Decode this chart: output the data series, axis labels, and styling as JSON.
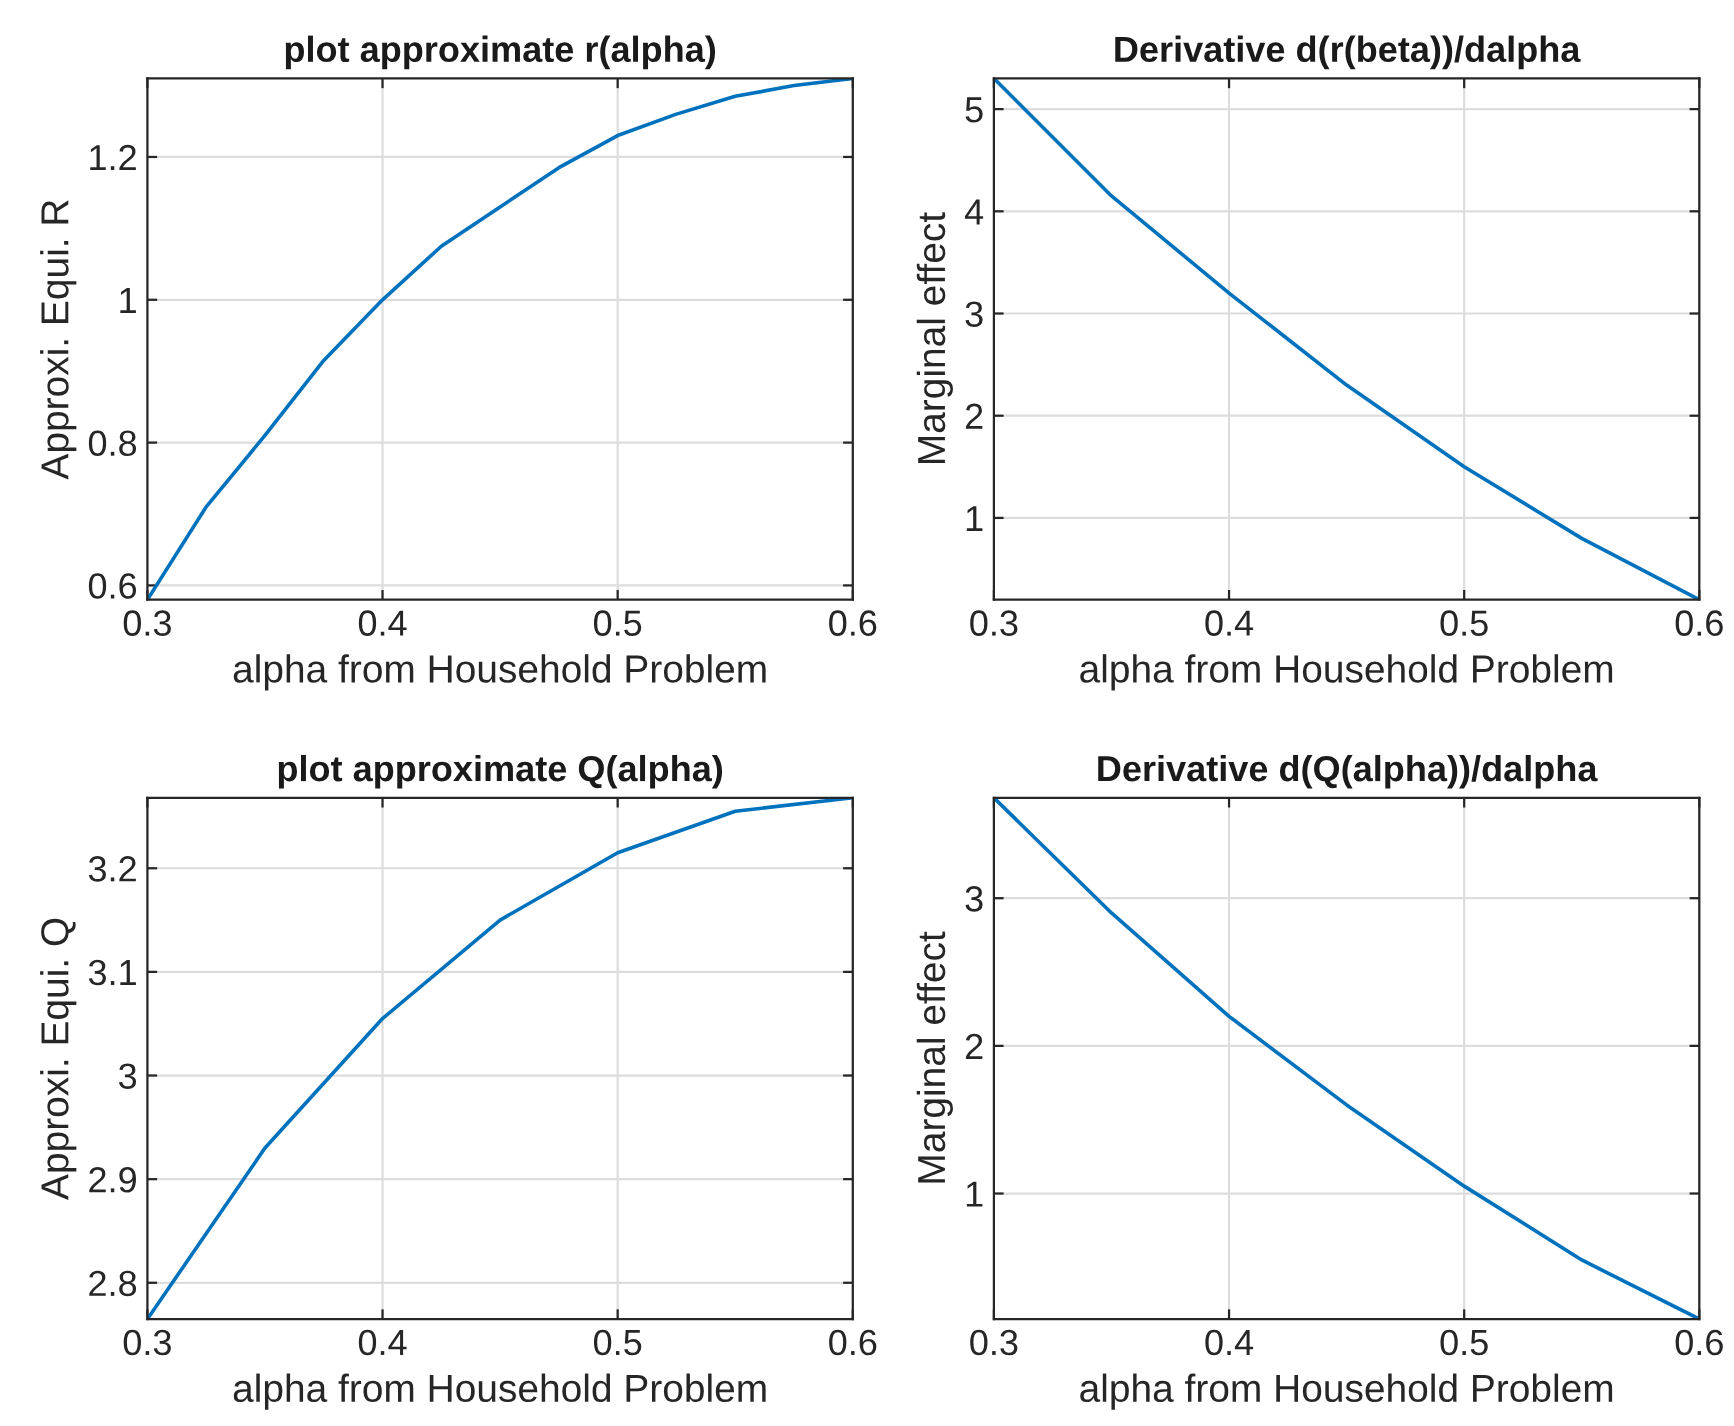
{
  "chart_data": [
    {
      "type": "line",
      "title": "plot approximate r(alpha)",
      "xlabel": "alpha from Household Problem",
      "ylabel": "Approxi. Equi. R",
      "x": [
        0.3,
        0.325,
        0.35,
        0.375,
        0.4,
        0.425,
        0.45,
        0.475,
        0.5,
        0.525,
        0.55,
        0.575,
        0.6
      ],
      "series": [
        {
          "color": "#0072bd",
          "values": [
            0.58,
            0.71,
            0.81,
            0.915,
            1.0,
            1.075,
            1.13,
            1.185,
            1.23,
            1.26,
            1.285,
            1.3,
            1.31
          ]
        }
      ],
      "xlim": [
        0.3,
        0.6
      ],
      "ylim": [
        0.58,
        1.31
      ],
      "xticks": [
        0.3,
        0.4,
        0.5,
        0.6
      ],
      "yticks": [
        0.6,
        0.8,
        1,
        1.2
      ],
      "grid": true
    },
    {
      "type": "line",
      "title": "Derivative d(r(beta))/dalpha",
      "xlabel": "alpha from Household Problem",
      "ylabel": "Marginal effect",
      "x": [
        0.3,
        0.35,
        0.4,
        0.45,
        0.5,
        0.55,
        0.6
      ],
      "series": [
        {
          "color": "#0072bd",
          "values": [
            5.3,
            4.15,
            3.2,
            2.3,
            1.5,
            0.8,
            0.2
          ]
        }
      ],
      "xlim": [
        0.3,
        0.6
      ],
      "ylim": [
        0.2,
        5.3
      ],
      "xticks": [
        0.3,
        0.4,
        0.5,
        0.6
      ],
      "yticks": [
        1,
        2,
        3,
        4,
        5
      ],
      "grid": true
    },
    {
      "type": "line",
      "title": "plot approximate Q(alpha)",
      "xlabel": "alpha from Household Problem",
      "ylabel": "Approxi. Equi. Q",
      "x": [
        0.3,
        0.35,
        0.4,
        0.45,
        0.5,
        0.55,
        0.6
      ],
      "series": [
        {
          "color": "#0072bd",
          "values": [
            2.765,
            2.93,
            3.055,
            3.15,
            3.215,
            3.255,
            3.268
          ]
        }
      ],
      "xlim": [
        0.3,
        0.6
      ],
      "ylim": [
        2.765,
        3.268
      ],
      "xticks": [
        0.3,
        0.4,
        0.5,
        0.6
      ],
      "yticks": [
        2.8,
        2.9,
        3,
        3.1,
        3.2
      ],
      "grid": true
    },
    {
      "type": "line",
      "title": "Derivative d(Q(alpha))/dalpha",
      "xlabel": "alpha from Household Problem",
      "ylabel": "Marginal effect",
      "x": [
        0.3,
        0.35,
        0.4,
        0.45,
        0.5,
        0.55,
        0.6
      ],
      "series": [
        {
          "color": "#0072bd",
          "values": [
            3.68,
            2.9,
            2.2,
            1.6,
            1.05,
            0.55,
            0.15
          ]
        }
      ],
      "xlim": [
        0.3,
        0.6
      ],
      "ylim": [
        0.15,
        3.68
      ],
      "xticks": [
        0.3,
        0.4,
        0.5,
        0.6
      ],
      "yticks": [
        1,
        2,
        3
      ],
      "grid": true
    }
  ]
}
